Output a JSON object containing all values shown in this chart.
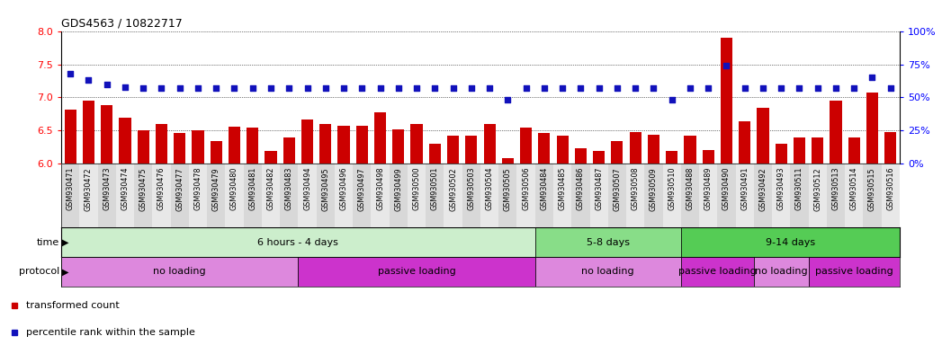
{
  "title": "GDS4563 / 10822717",
  "samples": [
    "GSM930471",
    "GSM930472",
    "GSM930473",
    "GSM930474",
    "GSM930475",
    "GSM930476",
    "GSM930477",
    "GSM930478",
    "GSM930479",
    "GSM930480",
    "GSM930481",
    "GSM930482",
    "GSM930483",
    "GSM930494",
    "GSM930495",
    "GSM930496",
    "GSM930497",
    "GSM930498",
    "GSM930499",
    "GSM930500",
    "GSM930501",
    "GSM930502",
    "GSM930503",
    "GSM930504",
    "GSM930505",
    "GSM930506",
    "GSM930484",
    "GSM930485",
    "GSM930486",
    "GSM930487",
    "GSM930507",
    "GSM930508",
    "GSM930509",
    "GSM930510",
    "GSM930488",
    "GSM930489",
    "GSM930490",
    "GSM930491",
    "GSM930492",
    "GSM930493",
    "GSM930511",
    "GSM930512",
    "GSM930513",
    "GSM930514",
    "GSM930515",
    "GSM930516"
  ],
  "bar_values": [
    6.82,
    6.95,
    6.88,
    6.7,
    6.5,
    6.6,
    6.46,
    6.5,
    6.34,
    6.56,
    6.55,
    6.2,
    6.4,
    6.67,
    6.6,
    6.58,
    6.58,
    6.78,
    6.52,
    6.6,
    6.3,
    6.43,
    6.42,
    6.6,
    6.08,
    6.54,
    6.46,
    6.43,
    6.24,
    6.2,
    6.35,
    6.48,
    6.44,
    6.2,
    6.43,
    6.21,
    7.9,
    6.64,
    6.85,
    6.3,
    6.4,
    6.4,
    6.95,
    6.4,
    7.08,
    6.48
  ],
  "percentile_values": [
    68,
    63,
    60,
    58,
    57,
    57,
    57,
    57,
    57,
    57,
    57,
    57,
    57,
    57,
    57,
    57,
    57,
    57,
    57,
    57,
    57,
    57,
    57,
    57,
    48,
    57,
    57,
    57,
    57,
    57,
    57,
    57,
    57,
    48,
    57,
    57,
    74,
    57,
    57,
    57,
    57,
    57,
    57,
    57,
    65,
    57
  ],
  "bar_color": "#cc0000",
  "dot_color": "#1111bb",
  "ylim_left": [
    6.0,
    8.0
  ],
  "ylim_right": [
    0,
    100
  ],
  "yticks_left": [
    6.0,
    6.5,
    7.0,
    7.5,
    8.0
  ],
  "yticks_right": [
    0,
    25,
    50,
    75,
    100
  ],
  "time_groups": [
    {
      "label": "6 hours - 4 days",
      "start": 0,
      "end": 25,
      "color": "#cceecc"
    },
    {
      "label": "5-8 days",
      "start": 26,
      "end": 33,
      "color": "#88dd88"
    },
    {
      "label": "9-14 days",
      "start": 34,
      "end": 45,
      "color": "#55cc55"
    }
  ],
  "protocol_groups": [
    {
      "label": "no loading",
      "start": 0,
      "end": 12,
      "color": "#dd88dd"
    },
    {
      "label": "passive loading",
      "start": 13,
      "end": 25,
      "color": "#cc33cc"
    },
    {
      "label": "no loading",
      "start": 26,
      "end": 33,
      "color": "#dd88dd"
    },
    {
      "label": "passive loading",
      "start": 34,
      "end": 37,
      "color": "#cc33cc"
    },
    {
      "label": "no loading",
      "start": 38,
      "end": 40,
      "color": "#dd88dd"
    },
    {
      "label": "passive loading",
      "start": 41,
      "end": 45,
      "color": "#cc33cc"
    }
  ]
}
